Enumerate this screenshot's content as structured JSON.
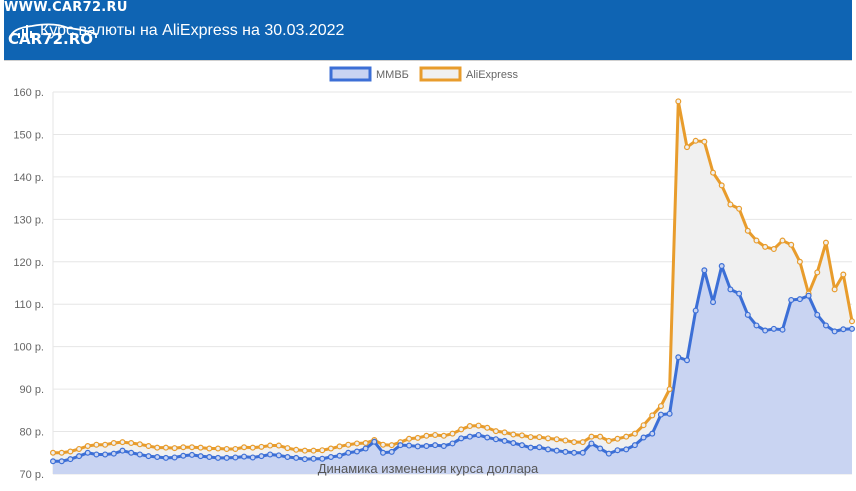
{
  "watermark": {
    "site_top": "WWW.CAR72.RU",
    "logo_text": "CAR72.RO"
  },
  "header": {
    "title": "Курс валюты на AliExpress на 30.03.2022",
    "icon": "bar-chart-icon"
  },
  "chart_data": {
    "type": "area",
    "title": "",
    "xlabel": "Динамика изменения курса доллара",
    "ylabel": "",
    "ylim": [
      70,
      160
    ],
    "yticks": [
      {
        "value": 70,
        "label": "70 р."
      },
      {
        "value": 80,
        "label": "80 р."
      },
      {
        "value": 90,
        "label": "90 р."
      },
      {
        "value": 100,
        "label": "100 р."
      },
      {
        "value": 110,
        "label": "110 р."
      },
      {
        "value": 120,
        "label": "120 р."
      },
      {
        "value": 130,
        "label": "130 р."
      },
      {
        "value": 140,
        "label": "140 р."
      },
      {
        "value": 150,
        "label": "150 р."
      },
      {
        "value": 160,
        "label": "160 р."
      }
    ],
    "grid": true,
    "legend_position": "top",
    "series": [
      {
        "name": "ММВБ",
        "color": "#3c6fd6",
        "fill": "#c9d4f2",
        "values": [
          73.0,
          73.0,
          73.5,
          74.2,
          75.0,
          74.6,
          74.6,
          74.8,
          75.5,
          75.0,
          74.6,
          74.2,
          74.0,
          73.8,
          73.9,
          74.3,
          74.5,
          74.2,
          74.0,
          73.8,
          73.8,
          73.9,
          74.1,
          73.9,
          74.2,
          74.6,
          74.4,
          74.0,
          73.8,
          73.5,
          73.6,
          73.6,
          74.0,
          74.3,
          75.0,
          75.3,
          76.0,
          77.6,
          75.0,
          75.2,
          76.8,
          76.7,
          76.5,
          76.6,
          76.8,
          76.6,
          77.2,
          78.4,
          78.8,
          79.2,
          78.6,
          78.2,
          77.8,
          77.3,
          76.8,
          76.2,
          76.3,
          75.8,
          75.5,
          75.2,
          75.0,
          75.0,
          77.2,
          76.0,
          74.8,
          75.6,
          75.8,
          76.8,
          78.6,
          79.5,
          84.0,
          84.2,
          97.5,
          96.8,
          108.5,
          118.0,
          110.5,
          119.0,
          113.5,
          112.5,
          107.5,
          105.0,
          103.8,
          104.2,
          104.0,
          111.0,
          111.2,
          112.0,
          107.5,
          105.0,
          103.6,
          104.1,
          104.2
        ]
      },
      {
        "name": "AliExpress",
        "color": "#e89c2c",
        "fill": "#f0f0f0",
        "values": [
          75.0,
          75.0,
          75.3,
          75.9,
          76.6,
          76.9,
          76.9,
          77.3,
          77.5,
          77.3,
          77.0,
          76.6,
          76.2,
          76.2,
          76.1,
          76.3,
          76.3,
          76.2,
          76.0,
          76.0,
          75.9,
          75.9,
          76.3,
          76.2,
          76.4,
          76.7,
          76.7,
          76.1,
          75.7,
          75.5,
          75.5,
          75.6,
          76.0,
          76.5,
          76.9,
          77.2,
          77.3,
          78.0,
          76.9,
          76.8,
          77.5,
          78.3,
          78.5,
          79.0,
          79.2,
          79.0,
          79.5,
          80.5,
          81.3,
          81.4,
          80.9,
          80.1,
          79.8,
          79.3,
          79.1,
          78.7,
          78.7,
          78.4,
          78.2,
          77.9,
          77.5,
          77.5,
          78.8,
          78.8,
          77.8,
          78.3,
          78.8,
          79.5,
          81.5,
          83.8,
          86.0,
          90.0,
          157.8,
          147.0,
          148.5,
          148.3,
          141.0,
          138.0,
          133.5,
          132.5,
          127.3,
          125.0,
          123.5,
          123.0,
          125.0,
          124.0,
          120.0,
          112.5,
          117.5,
          124.5,
          113.5,
          117.0,
          106.0
        ]
      }
    ]
  }
}
